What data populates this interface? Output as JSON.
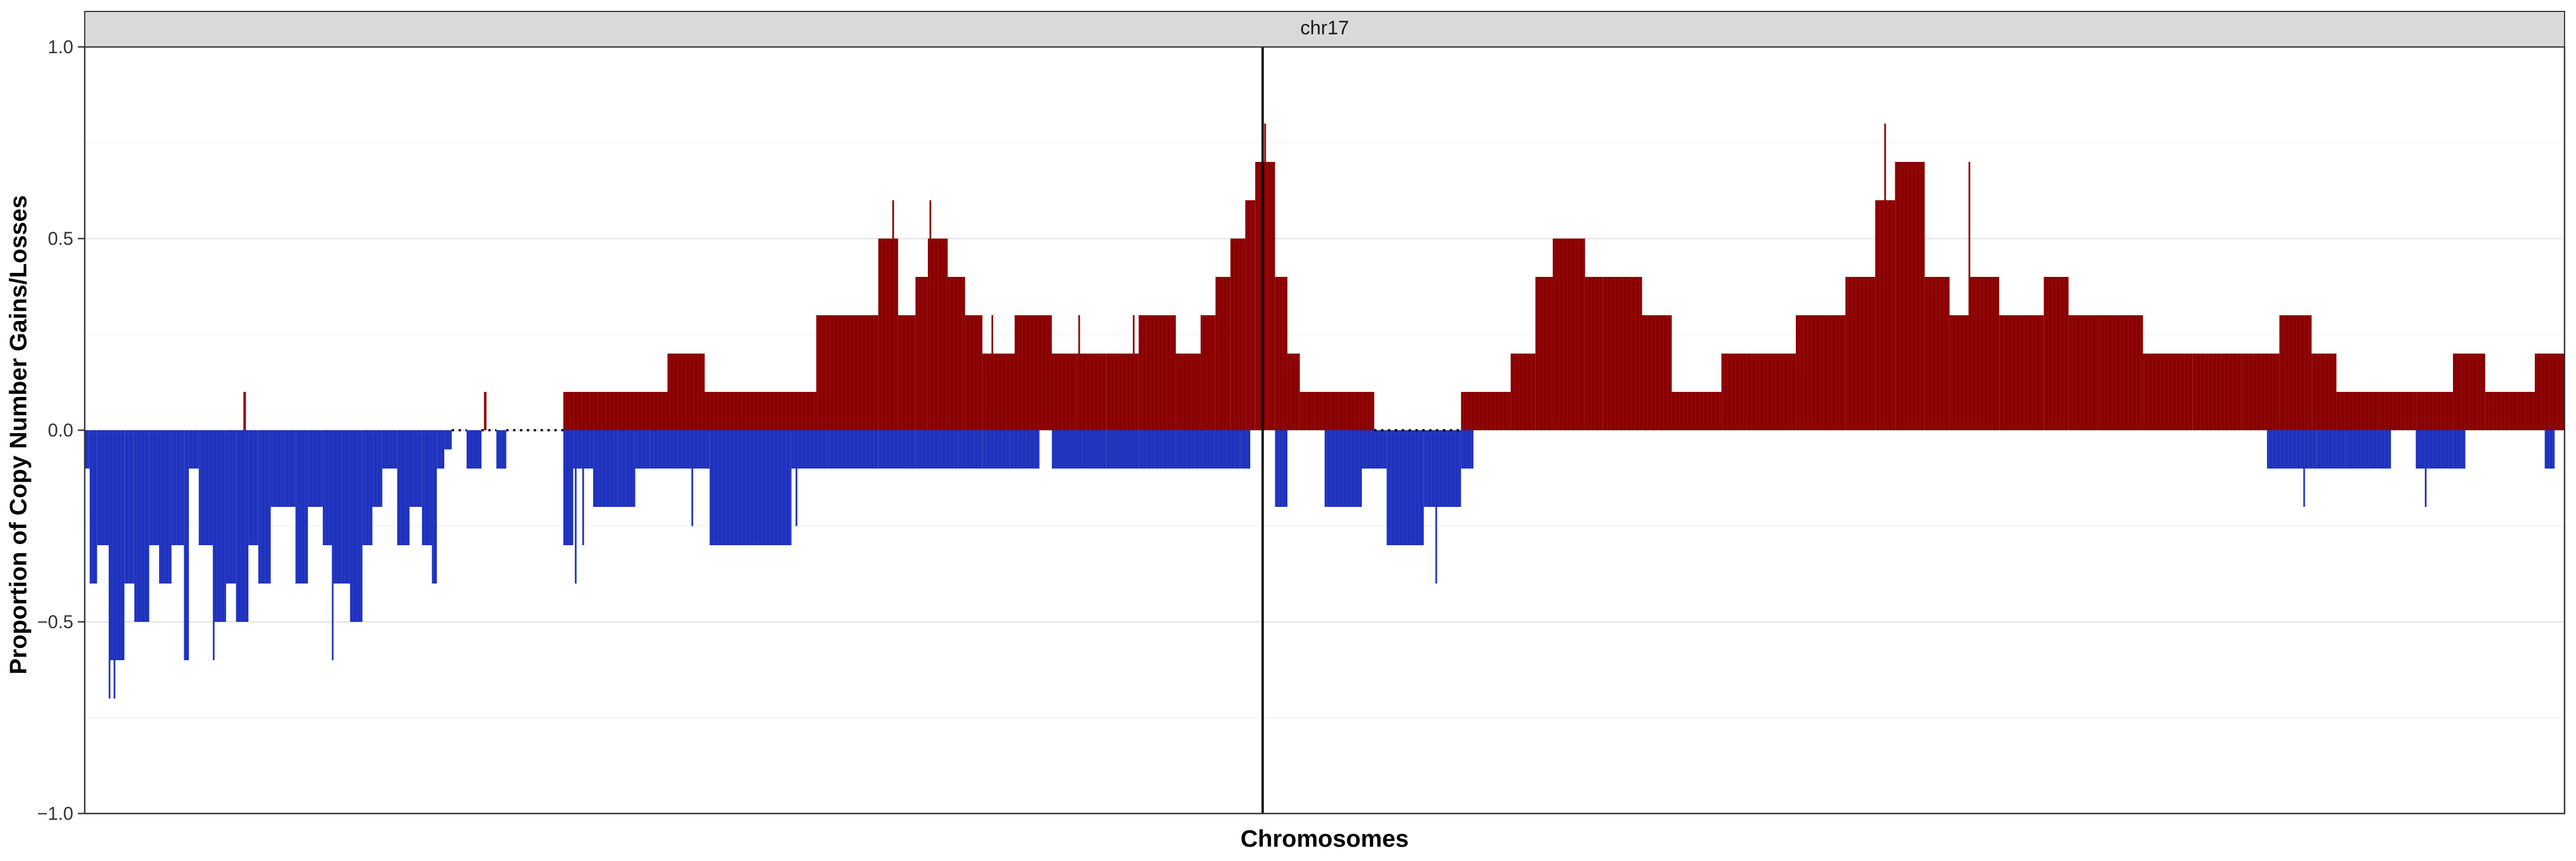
{
  "chart_data": {
    "type": "bar",
    "facet_label": "chr17",
    "xlabel": "Chromosomes",
    "ylabel": "Proportion of Copy Number Gains/Losses",
    "ylim": [
      -1.0,
      1.0
    ],
    "yticks": [
      {
        "value": 1.0,
        "label": "1.0"
      },
      {
        "value": 0.5,
        "label": "0.5"
      },
      {
        "value": 0.0,
        "label": "0.0"
      },
      {
        "value": -0.5,
        "label": "−0.5"
      },
      {
        "value": -1.0,
        "label": "−1.0"
      }
    ],
    "x_range": [
      0,
      1000
    ],
    "centromere_x": 475,
    "colors": {
      "gain": "#8B0000",
      "loss": "#1E32BE"
    },
    "series": [
      {
        "name": "gain",
        "segments": [
          [
            64,
            65,
            0.1
          ],
          [
            161,
            162,
            0.1
          ],
          [
            193,
            235,
            0.1
          ],
          [
            235,
            250,
            0.2
          ],
          [
            250,
            265,
            0.1
          ],
          [
            265,
            295,
            0.1
          ],
          [
            295,
            320,
            0.3
          ],
          [
            320,
            328,
            0.5
          ],
          [
            328,
            335,
            0.3
          ],
          [
            335,
            340,
            0.4
          ],
          [
            340,
            348,
            0.5
          ],
          [
            348,
            355,
            0.4
          ],
          [
            355,
            362,
            0.3
          ],
          [
            362,
            375,
            0.2
          ],
          [
            375,
            390,
            0.3
          ],
          [
            390,
            400,
            0.2
          ],
          [
            400,
            412,
            0.2
          ],
          [
            412,
            425,
            0.2
          ],
          [
            425,
            440,
            0.3
          ],
          [
            440,
            450,
            0.2
          ],
          [
            450,
            456,
            0.3
          ],
          [
            456,
            462,
            0.4
          ],
          [
            462,
            468,
            0.5
          ],
          [
            468,
            472,
            0.6
          ],
          [
            472,
            475,
            0.7
          ],
          [
            475,
            477,
            0.7
          ],
          [
            477,
            480,
            0.7
          ],
          [
            480,
            485,
            0.4
          ],
          [
            485,
            490,
            0.2
          ],
          [
            490,
            520,
            0.1
          ],
          [
            555,
            575,
            0.1
          ],
          [
            575,
            585,
            0.2
          ],
          [
            585,
            592,
            0.4
          ],
          [
            592,
            605,
            0.5
          ],
          [
            605,
            612,
            0.4
          ],
          [
            612,
            628,
            0.4
          ],
          [
            628,
            640,
            0.3
          ],
          [
            640,
            660,
            0.1
          ],
          [
            660,
            670,
            0.2
          ],
          [
            670,
            690,
            0.2
          ],
          [
            690,
            710,
            0.3
          ],
          [
            710,
            722,
            0.4
          ],
          [
            722,
            730,
            0.6
          ],
          [
            730,
            742,
            0.7
          ],
          [
            742,
            752,
            0.4
          ],
          [
            752,
            760,
            0.3
          ],
          [
            760,
            772,
            0.4
          ],
          [
            772,
            790,
            0.3
          ],
          [
            790,
            800,
            0.4
          ],
          [
            800,
            812,
            0.3
          ],
          [
            812,
            830,
            0.3
          ],
          [
            830,
            850,
            0.2
          ],
          [
            850,
            870,
            0.2
          ],
          [
            870,
            885,
            0.2
          ],
          [
            885,
            898,
            0.3
          ],
          [
            898,
            908,
            0.2
          ],
          [
            908,
            925,
            0.1
          ],
          [
            925,
            940,
            0.1
          ],
          [
            940,
            955,
            0.1
          ],
          [
            955,
            968,
            0.2
          ],
          [
            968,
            988,
            0.1
          ],
          [
            988,
            1000,
            0.2
          ]
        ]
      },
      {
        "name": "loss",
        "segments": [
          [
            0,
            2,
            -0.1
          ],
          [
            2,
            5,
            -0.4
          ],
          [
            5,
            10,
            -0.3
          ],
          [
            10,
            16,
            -0.6
          ],
          [
            16,
            20,
            -0.4
          ],
          [
            20,
            26,
            -0.5
          ],
          [
            26,
            30,
            -0.3
          ],
          [
            30,
            35,
            -0.4
          ],
          [
            35,
            40,
            -0.3
          ],
          [
            40,
            42,
            -0.6
          ],
          [
            42,
            46,
            -0.1
          ],
          [
            46,
            52,
            -0.3
          ],
          [
            52,
            57,
            -0.5
          ],
          [
            57,
            61,
            -0.4
          ],
          [
            61,
            66,
            -0.5
          ],
          [
            66,
            70,
            -0.3
          ],
          [
            70,
            75,
            -0.4
          ],
          [
            75,
            80,
            -0.2
          ],
          [
            80,
            85,
            -0.2
          ],
          [
            85,
            90,
            -0.4
          ],
          [
            90,
            96,
            -0.2
          ],
          [
            96,
            100,
            -0.3
          ],
          [
            100,
            107,
            -0.4
          ],
          [
            107,
            112,
            -0.5
          ],
          [
            112,
            116,
            -0.3
          ],
          [
            116,
            120,
            -0.2
          ],
          [
            120,
            126,
            -0.1
          ],
          [
            126,
            131,
            -0.3
          ],
          [
            131,
            136,
            -0.2
          ],
          [
            136,
            140,
            -0.3
          ],
          [
            140,
            142,
            -0.4
          ],
          [
            142,
            145,
            -0.1
          ],
          [
            145,
            148,
            -0.05
          ],
          [
            154,
            160,
            -0.1
          ],
          [
            166,
            170,
            -0.1
          ],
          [
            193,
            197,
            -0.3
          ],
          [
            197,
            205,
            -0.1
          ],
          [
            205,
            215,
            -0.2
          ],
          [
            215,
            222,
            -0.2
          ],
          [
            222,
            228,
            -0.1
          ],
          [
            228,
            238,
            -0.1
          ],
          [
            238,
            245,
            -0.1
          ],
          [
            245,
            252,
            -0.1
          ],
          [
            252,
            268,
            -0.3
          ],
          [
            268,
            285,
            -0.3
          ],
          [
            285,
            300,
            -0.1
          ],
          [
            300,
            320,
            -0.1
          ],
          [
            320,
            335,
            -0.1
          ],
          [
            335,
            345,
            -0.1
          ],
          [
            345,
            352,
            -0.1
          ],
          [
            352,
            362,
            -0.1
          ],
          [
            362,
            373,
            -0.1
          ],
          [
            373,
            385,
            -0.1
          ],
          [
            390,
            402,
            -0.1
          ],
          [
            402,
            412,
            -0.1
          ],
          [
            412,
            425,
            -0.1
          ],
          [
            425,
            440,
            -0.1
          ],
          [
            440,
            455,
            -0.1
          ],
          [
            455,
            466,
            -0.1
          ],
          [
            466,
            470,
            -0.1
          ],
          [
            480,
            485,
            -0.2
          ],
          [
            500,
            515,
            -0.2
          ],
          [
            515,
            525,
            -0.1
          ],
          [
            525,
            540,
            -0.3
          ],
          [
            540,
            555,
            -0.2
          ],
          [
            555,
            560,
            -0.1
          ],
          [
            880,
            900,
            -0.1
          ],
          [
            900,
            912,
            -0.1
          ],
          [
            912,
            930,
            -0.1
          ],
          [
            940,
            955,
            -0.1
          ],
          [
            955,
            960,
            -0.1
          ],
          [
            992,
            996,
            -0.1
          ]
        ]
      }
    ],
    "spikes": [
      [
        10,
        -0.7
      ],
      [
        12,
        -0.7
      ],
      [
        52,
        -0.6
      ],
      [
        100,
        -0.6
      ],
      [
        198,
        -0.4
      ],
      [
        201,
        -0.3
      ],
      [
        245,
        -0.25
      ],
      [
        287,
        -0.25
      ],
      [
        326,
        0.6
      ],
      [
        341,
        0.6
      ],
      [
        366,
        0.3
      ],
      [
        401,
        0.3
      ],
      [
        423,
        0.3
      ],
      [
        476,
        0.8
      ],
      [
        545,
        -0.4
      ],
      [
        574,
        0.1
      ],
      [
        726,
        0.8
      ],
      [
        760,
        0.7
      ],
      [
        895,
        -0.2
      ],
      [
        944,
        -0.2
      ],
      [
        928,
        0.1
      ]
    ],
    "dotted_gaps": [
      [
        148,
        154
      ],
      [
        160,
        166
      ],
      [
        170,
        193
      ],
      [
        520,
        555
      ]
    ]
  }
}
